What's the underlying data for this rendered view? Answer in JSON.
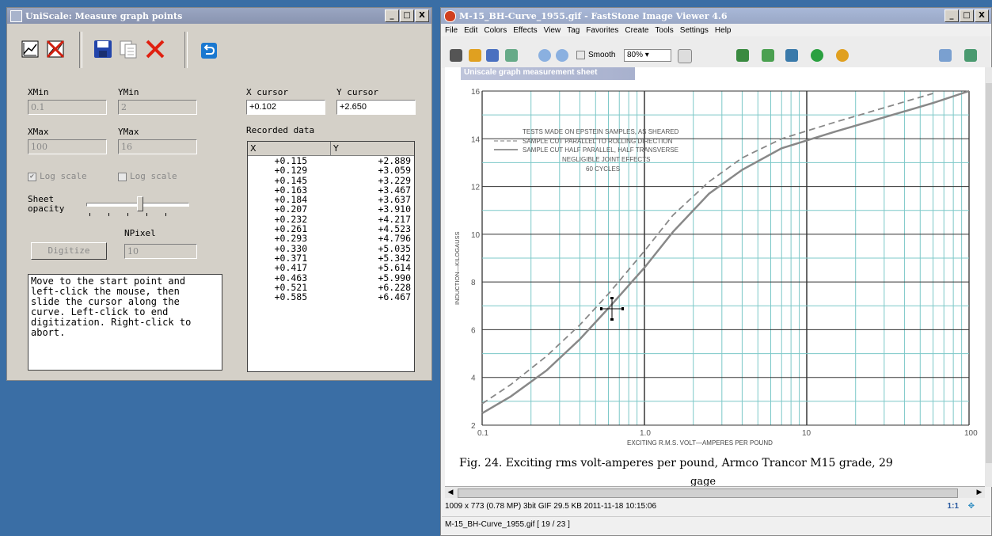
{
  "uniscale": {
    "title": "UniScale: Measure graph points",
    "window_buttons": [
      "_",
      "□",
      "X"
    ],
    "labels": {
      "xmin": "XMin",
      "ymin": "YMin",
      "xmax": "XMax",
      "ymax": "YMax",
      "x_cursor": "X cursor",
      "y_cursor": "Y cursor",
      "recorded": "Recorded data",
      "log_x": "Log scale",
      "log_y": "Log scale",
      "sheet_opacity": "Sheet\nopacity",
      "npixel": "NPixel",
      "digitize": "Digitize"
    },
    "values": {
      "xmin": "0.1",
      "ymin": "2",
      "xmax": "100",
      "ymax": "16",
      "x_cursor": "+0.102",
      "y_cursor": "+2.650",
      "npixel": "10"
    },
    "log_x_checked": true,
    "log_y_checked": false,
    "message": "Move to the start point and\nleft-click the mouse, then\nslide the cursor along the\ncurve. Left-click to end\ndigitization. Right-click to\nabort.",
    "table": {
      "headers": [
        "X",
        "Y"
      ],
      "rows": [
        [
          "+0.115",
          "+2.889"
        ],
        [
          "+0.129",
          "+3.059"
        ],
        [
          "+0.145",
          "+3.229"
        ],
        [
          "+0.163",
          "+3.467"
        ],
        [
          "+0.184",
          "+3.637"
        ],
        [
          "+0.207",
          "+3.910"
        ],
        [
          "+0.232",
          "+4.217"
        ],
        [
          "+0.261",
          "+4.523"
        ],
        [
          "+0.293",
          "+4.796"
        ],
        [
          "+0.330",
          "+5.035"
        ],
        [
          "+0.371",
          "+5.342"
        ],
        [
          "+0.417",
          "+5.614"
        ],
        [
          "+0.463",
          "+5.990"
        ],
        [
          "+0.521",
          "+6.228"
        ],
        [
          "+0.585",
          "+6.467"
        ]
      ]
    }
  },
  "viewer": {
    "title": "M-15_BH-Curve_1955.gif  -  FastStone Image Viewer 4.6",
    "window_buttons": [
      "_",
      "□",
      "X"
    ],
    "menu": [
      "File",
      "Edit",
      "Colors",
      "Effects",
      "View",
      "Tag",
      "Favorites",
      "Create",
      "Tools",
      "Settings",
      "Help"
    ],
    "toolbar": {
      "smooth": "Smooth",
      "zoom": "80%"
    },
    "overlay_title": "Uniscale graph measurement sheet",
    "caption": "Fig. 24.   Exciting rms volt-amperes per pound, Armco Trancor M15 grade, 29",
    "caption_cut": "gage",
    "status1": "1009 x 773 (0.78 MP)  3bit  GIF  29.5 KB  2011-11-18 10:15:06",
    "status_zoom": "1:1",
    "status2": "M-15_BH-Curve_1955.gif [ 19 / 23 ]"
  },
  "graph": {
    "y_ticks": [
      "16",
      "14",
      "12",
      "10",
      "8",
      "6",
      "4",
      "2"
    ],
    "x_ticks": [
      "0.1",
      "1.0",
      "10",
      "100"
    ],
    "ylabel": "INDUCTION—KILOGAUSS",
    "xlabel": "EXCITING R.M.S. VOLT—AMPERES PER POUND",
    "legend": [
      "TESTS MADE ON EPSTEIN SAMPLES, AS SHEARED",
      "SAMPLE CUT PARALLEL TO ROLLING DIRECTION",
      "SAMPLE CUT HALF PARALLEL, HALF TRANSVERSE",
      "NEGLIGIBLE JOINT EFFECTS",
      "60 CYCLES"
    ]
  }
}
